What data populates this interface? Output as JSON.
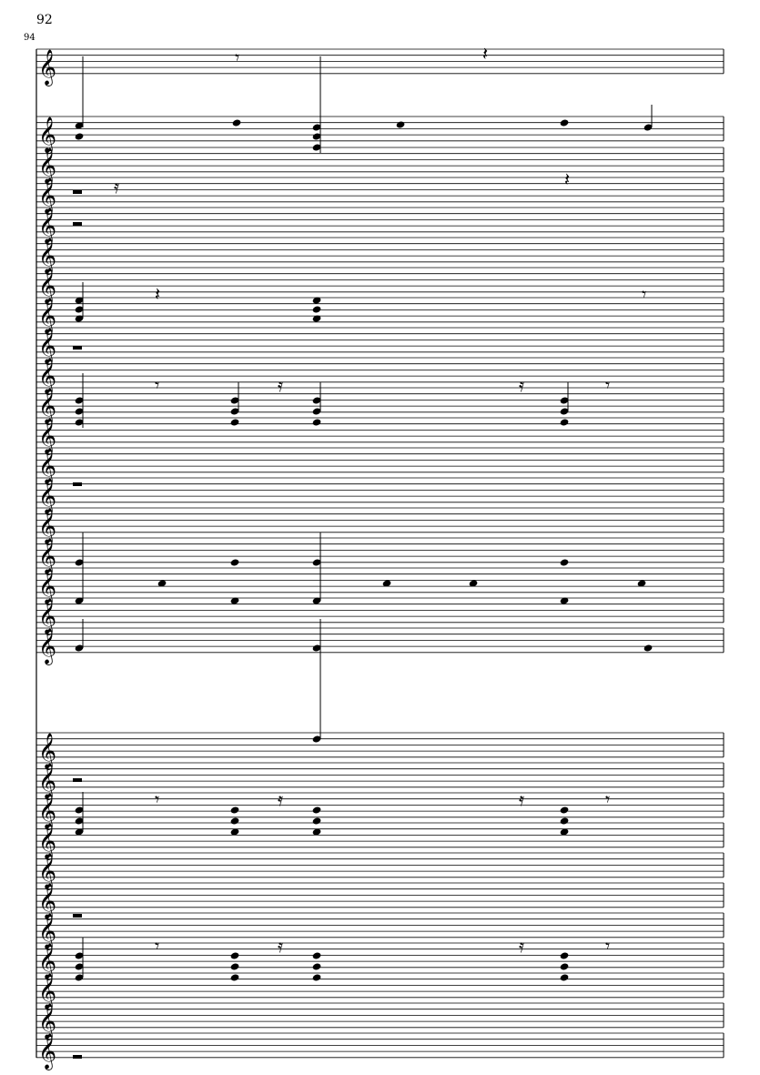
{
  "score": {
    "measure_number_top": "92",
    "measure_number_left": "94",
    "clef": "treble-clef",
    "ink_color": "#000000",
    "paper_color": "#ffffff"
  }
}
